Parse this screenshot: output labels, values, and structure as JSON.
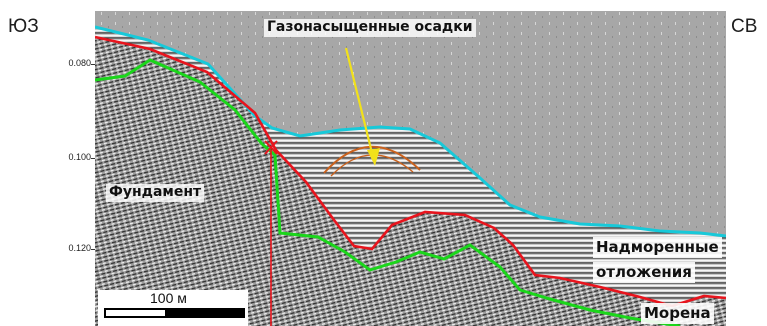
{
  "orientation": {
    "left": "ЮЗ",
    "right": "СВ"
  },
  "time_axis": {
    "ticks": [
      "0.080",
      "0.100",
      "0.120"
    ]
  },
  "annotations": {
    "gas": "Газонасыщенные осадки",
    "basement": "Фундамент",
    "above_moraine_line1": "Надморенные",
    "above_moraine_line2": "отложения",
    "moraine": "Морена"
  },
  "scale": {
    "label": "100 м"
  },
  "colors": {
    "seafloor": "#17c9d9",
    "red_horizon": "#e8141d",
    "green_horizon": "#1bd61b",
    "gas_arc": "#c9611d",
    "arrow": "#f2e11a",
    "water": "#a7a7a7"
  }
}
